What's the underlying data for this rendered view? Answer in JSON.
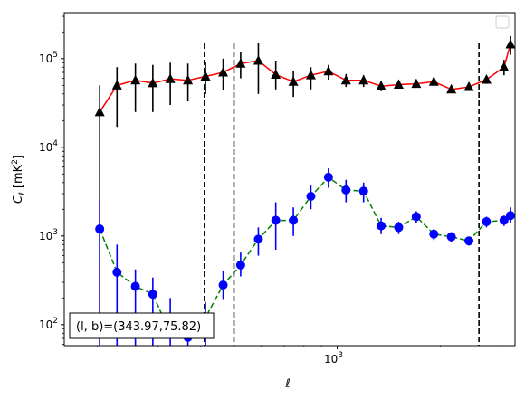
{
  "chart_data": {
    "type": "line",
    "xlabel": "ℓ",
    "ylabel_main": "C",
    "ylabel_sub": "ℓ",
    "ylabel_unit_pre": "[mK",
    "ylabel_unit_sup": "2",
    "ylabel_unit_post": "]",
    "xscale": "log",
    "yscale": "log",
    "xlim": [
      160,
      3300
    ],
    "ylim": [
      58,
      330000
    ],
    "xticks": [
      {
        "value": 1000,
        "base": "10",
        "exp": "3"
      }
    ],
    "yticks": [
      {
        "value": 100,
        "base": "10",
        "exp": "2"
      },
      {
        "value": 1000,
        "base": "10",
        "exp": "3"
      },
      {
        "value": 10000,
        "base": "10",
        "exp": "4"
      },
      {
        "value": 100000,
        "base": "10",
        "exp": "5"
      }
    ],
    "vlines": [
      410,
      500,
      2590
    ],
    "annotation": "(l, b)=(343.97,75.82)",
    "legend_position": "upper-right",
    "grid": false,
    "series": [
      {
        "line_color": "#ff0000",
        "marker_color": "#000000",
        "errbar_color": "#000000",
        "marker": "triangle",
        "linestyle": "solid",
        "points": [
          {
            "x": 203,
            "y": 25000,
            "lo": 60,
            "hi": 50000
          },
          {
            "x": 228,
            "y": 50000,
            "lo": 17000,
            "hi": 80000
          },
          {
            "x": 258,
            "y": 57000,
            "lo": 25000,
            "hi": 88000
          },
          {
            "x": 290,
            "y": 53000,
            "lo": 25000,
            "hi": 85000
          },
          {
            "x": 326,
            "y": 59000,
            "lo": 30000,
            "hi": 90000
          },
          {
            "x": 367,
            "y": 57000,
            "lo": 33000,
            "hi": 88000
          },
          {
            "x": 413,
            "y": 63000,
            "lo": 40000,
            "hi": 92000
          },
          {
            "x": 465,
            "y": 70000,
            "lo": 44000,
            "hi": 100000
          },
          {
            "x": 523,
            "y": 88000,
            "lo": 60000,
            "hi": 120000
          },
          {
            "x": 589,
            "y": 95000,
            "lo": 40000,
            "hi": 150000
          },
          {
            "x": 662,
            "y": 66000,
            "lo": 45000,
            "hi": 95000
          },
          {
            "x": 745,
            "y": 55000,
            "lo": 37000,
            "hi": 72000
          },
          {
            "x": 838,
            "y": 65000,
            "lo": 45000,
            "hi": 80000
          },
          {
            "x": 943,
            "y": 72000,
            "lo": 58000,
            "hi": 85000
          },
          {
            "x": 1061,
            "y": 57000,
            "lo": 48000,
            "hi": 67000
          },
          {
            "x": 1194,
            "y": 57000,
            "lo": 48000,
            "hi": 65000
          },
          {
            "x": 1343,
            "y": 49000,
            "lo": 43000,
            "hi": 56000
          },
          {
            "x": 1511,
            "y": 51000,
            "lo": 46000,
            "hi": 57000
          },
          {
            "x": 1700,
            "y": 52000,
            "lo": 47000,
            "hi": 58000
          },
          {
            "x": 1913,
            "y": 55000,
            "lo": 50000,
            "hi": 60000
          },
          {
            "x": 2152,
            "y": 45000,
            "lo": 41000,
            "hi": 49000
          },
          {
            "x": 2421,
            "y": 48000,
            "lo": 44000,
            "hi": 53000
          },
          {
            "x": 2724,
            "y": 58000,
            "lo": 52000,
            "hi": 64000
          },
          {
            "x": 3065,
            "y": 80000,
            "lo": 65000,
            "hi": 97000
          },
          {
            "x": 3200,
            "y": 145000,
            "lo": 110000,
            "hi": 180000
          }
        ]
      },
      {
        "line_color": "#008000",
        "marker_color": "#0000ff",
        "errbar_color": "#0000ff",
        "marker": "circle",
        "linestyle": "dashed",
        "points": [
          {
            "x": 203,
            "y": 1200,
            "lo": 58,
            "hi": 2600
          },
          {
            "x": 228,
            "y": 390,
            "lo": 58,
            "hi": 800
          },
          {
            "x": 258,
            "y": 270,
            "lo": 58,
            "hi": 420
          },
          {
            "x": 290,
            "y": 220,
            "lo": 58,
            "hi": 340
          },
          {
            "x": 326,
            "y": 80,
            "lo": 58,
            "hi": 200
          },
          {
            "x": 367,
            "y": 72,
            "lo": 58,
            "hi": 100
          },
          {
            "x": 413,
            "y": 120,
            "lo": 58,
            "hi": 180
          },
          {
            "x": 465,
            "y": 280,
            "lo": 190,
            "hi": 400
          },
          {
            "x": 523,
            "y": 470,
            "lo": 350,
            "hi": 650
          },
          {
            "x": 589,
            "y": 920,
            "lo": 600,
            "hi": 1250
          },
          {
            "x": 662,
            "y": 1500,
            "lo": 700,
            "hi": 2400
          },
          {
            "x": 745,
            "y": 1500,
            "lo": 1000,
            "hi": 2100
          },
          {
            "x": 838,
            "y": 2800,
            "lo": 2000,
            "hi": 3800
          },
          {
            "x": 943,
            "y": 4600,
            "lo": 3500,
            "hi": 5800
          },
          {
            "x": 1061,
            "y": 3300,
            "lo": 2400,
            "hi": 4300
          },
          {
            "x": 1194,
            "y": 3200,
            "lo": 2400,
            "hi": 4000
          },
          {
            "x": 1343,
            "y": 1300,
            "lo": 1050,
            "hi": 1600
          },
          {
            "x": 1511,
            "y": 1250,
            "lo": 1050,
            "hi": 1450
          },
          {
            "x": 1700,
            "y": 1650,
            "lo": 1400,
            "hi": 1900
          },
          {
            "x": 1913,
            "y": 1050,
            "lo": 900,
            "hi": 1200
          },
          {
            "x": 2152,
            "y": 980,
            "lo": 850,
            "hi": 1100
          },
          {
            "x": 2421,
            "y": 880,
            "lo": 780,
            "hi": 980
          },
          {
            "x": 2724,
            "y": 1450,
            "lo": 1250,
            "hi": 1650
          },
          {
            "x": 3065,
            "y": 1500,
            "lo": 1300,
            "hi": 1700
          },
          {
            "x": 3200,
            "y": 1700,
            "lo": 1400,
            "hi": 2100
          }
        ]
      }
    ]
  }
}
